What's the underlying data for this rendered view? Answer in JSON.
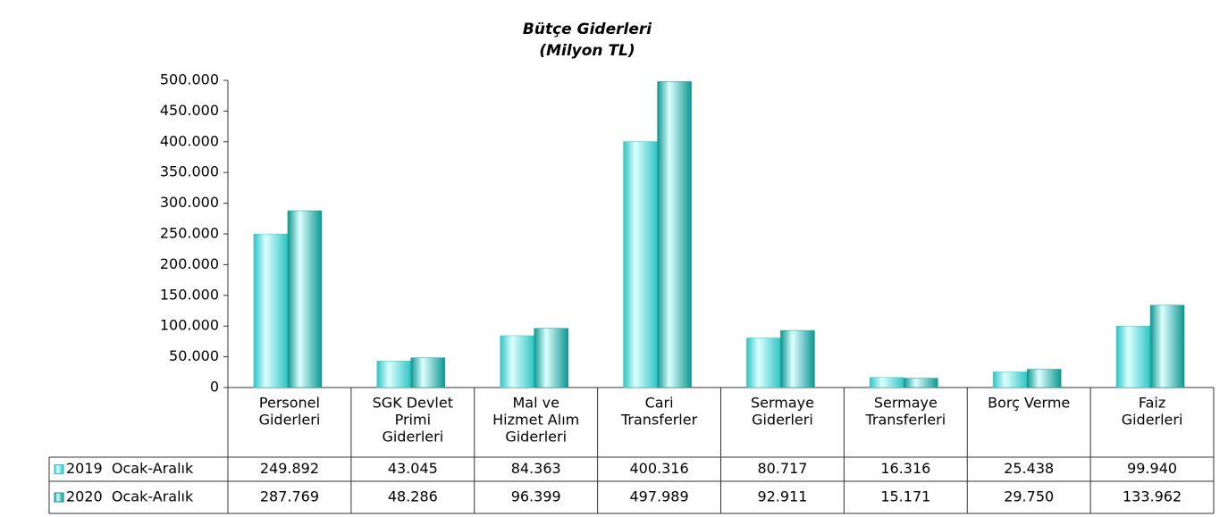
{
  "chart_data": {
    "type": "bar",
    "title": "Bütçe Giderleri",
    "subtitle": "(Milyon TL)",
    "categories": [
      [
        "Personel",
        "Giderleri"
      ],
      [
        "SGK Devlet",
        "Primi",
        "Giderleri"
      ],
      [
        "Mal ve",
        "Hizmet Alım",
        "Giderleri"
      ],
      [
        "Cari",
        "Transferler"
      ],
      [
        "Sermaye",
        "Giderleri"
      ],
      [
        "Sermaye",
        "Transferleri"
      ],
      [
        "Borç Verme"
      ],
      [
        "Faiz",
        "Giderleri"
      ]
    ],
    "series": [
      {
        "name": "2019  Ocak-Aralık",
        "color": "#2fc4c4",
        "values": [
          249892,
          43045,
          84363,
          400316,
          80717,
          16316,
          25438,
          99940
        ],
        "value_labels": [
          "249.892",
          "43.045",
          "84.363",
          "400.316",
          "80.717",
          "16.316",
          "25.438",
          "99.940"
        ]
      },
      {
        "name": "2020  Ocak-Aralık",
        "color": "#0e9690",
        "values": [
          287769,
          48286,
          96399,
          497989,
          92911,
          15171,
          29750,
          133962
        ],
        "value_labels": [
          "287.769",
          "48.286",
          "96.399",
          "497.989",
          "92.911",
          "15.171",
          "29.750",
          "133.962"
        ]
      }
    ],
    "ylim": [
      0,
      500000
    ],
    "yticks": [
      0,
      {
        "value": 50000,
        "label": "50.000"
      },
      {
        "value": 100000,
        "label": "100.000"
      },
      {
        "value": 150000,
        "label": "150.000"
      },
      {
        "value": 200000,
        "label": "200.000"
      },
      {
        "value": 250000,
        "label": "250.000"
      },
      {
        "value": 300000,
        "label": "300.000"
      },
      {
        "value": 350000,
        "label": "350.000"
      },
      {
        "value": 400000,
        "label": "400.000"
      },
      {
        "value": 450000,
        "label": "450.000"
      },
      {
        "value": 500000,
        "label": "500.000"
      }
    ],
    "grid": false
  }
}
